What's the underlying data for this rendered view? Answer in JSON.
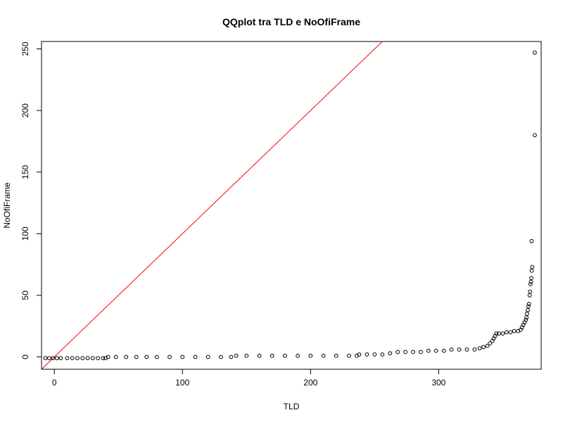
{
  "chart_data": {
    "type": "scatter",
    "title": "QQplot tra TLD e NoOfiFrame",
    "xlabel": "TLD",
    "ylabel": "NoOfiFrame",
    "xlim": [
      -10,
      380
    ],
    "ylim": [
      -10,
      256
    ],
    "x_ticks": [
      0,
      100,
      200,
      300
    ],
    "y_ticks": [
      0,
      50,
      100,
      150,
      200,
      250
    ],
    "grid": false,
    "legend": "none",
    "colors": {
      "points": "#000000",
      "reference_line": "#ff0000"
    },
    "reference_line": {
      "intercept": 0,
      "slope": 1
    },
    "points": [
      [
        -7,
        -1
      ],
      [
        -4,
        -1
      ],
      [
        -1,
        -1
      ],
      [
        2,
        -1
      ],
      [
        5,
        -1
      ],
      [
        10,
        -1
      ],
      [
        14,
        -1
      ],
      [
        18,
        -1
      ],
      [
        22,
        -1
      ],
      [
        26,
        -1
      ],
      [
        30,
        -1
      ],
      [
        34,
        -1
      ],
      [
        38,
        -1
      ],
      [
        40,
        -1
      ],
      [
        42,
        0
      ],
      [
        48,
        0
      ],
      [
        56,
        0
      ],
      [
        64,
        0
      ],
      [
        72,
        0
      ],
      [
        80,
        0
      ],
      [
        90,
        0
      ],
      [
        100,
        0
      ],
      [
        110,
        0
      ],
      [
        120,
        0
      ],
      [
        130,
        0
      ],
      [
        138,
        0
      ],
      [
        142,
        1
      ],
      [
        150,
        1
      ],
      [
        160,
        1
      ],
      [
        170,
        1
      ],
      [
        180,
        1
      ],
      [
        190,
        1
      ],
      [
        200,
        1
      ],
      [
        210,
        1
      ],
      [
        220,
        1
      ],
      [
        230,
        1
      ],
      [
        236,
        1
      ],
      [
        238,
        2
      ],
      [
        244,
        2
      ],
      [
        250,
        2
      ],
      [
        256,
        2
      ],
      [
        262,
        3
      ],
      [
        268,
        4
      ],
      [
        274,
        4
      ],
      [
        280,
        4
      ],
      [
        286,
        4
      ],
      [
        292,
        5
      ],
      [
        298,
        5
      ],
      [
        304,
        5
      ],
      [
        310,
        6
      ],
      [
        316,
        6
      ],
      [
        322,
        6
      ],
      [
        328,
        6
      ],
      [
        332,
        7
      ],
      [
        335,
        8
      ],
      [
        338,
        9
      ],
      [
        340,
        11
      ],
      [
        342,
        13
      ],
      [
        343,
        15
      ],
      [
        344,
        17
      ],
      [
        345,
        19
      ],
      [
        347,
        19
      ],
      [
        350,
        19
      ],
      [
        353,
        20
      ],
      [
        356,
        20
      ],
      [
        359,
        21
      ],
      [
        362,
        21
      ],
      [
        364,
        22
      ],
      [
        365,
        24
      ],
      [
        366,
        26
      ],
      [
        367,
        28
      ],
      [
        368,
        30
      ],
      [
        368.5,
        32
      ],
      [
        369,
        35
      ],
      [
        369.5,
        38
      ],
      [
        370,
        41
      ],
      [
        370.5,
        43
      ],
      [
        371,
        50
      ],
      [
        371.3,
        53
      ],
      [
        371.6,
        59
      ],
      [
        372,
        61
      ],
      [
        372.3,
        64
      ],
      [
        372.6,
        70
      ],
      [
        373,
        73
      ],
      [
        372.5,
        94
      ],
      [
        375,
        180
      ],
      [
        375,
        247
      ]
    ]
  }
}
